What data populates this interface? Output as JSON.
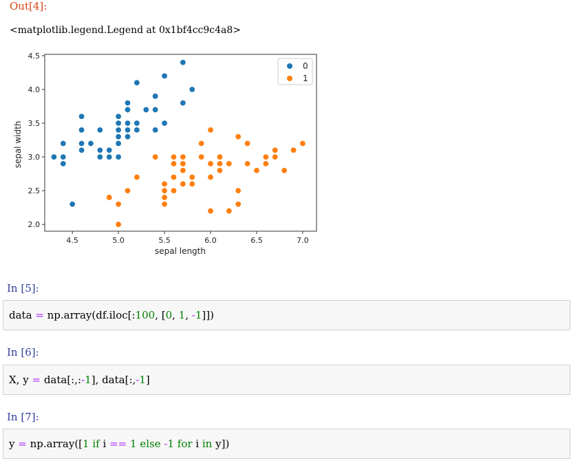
{
  "out4": {
    "prompt": "Out[4]:",
    "text": "<matplotlib.legend.Legend at 0x1bf4cc9c4a8>"
  },
  "chart_data": {
    "type": "scatter",
    "xlabel": "sepal length",
    "ylabel": "sepal width",
    "xlim": [
      4.2,
      7.15
    ],
    "ylim": [
      1.9,
      4.52
    ],
    "xticks": [
      "4.5",
      "5.0",
      "5.5",
      "6.0",
      "6.5",
      "7.0"
    ],
    "yticks": [
      "2.0",
      "2.5",
      "3.0",
      "3.5",
      "4.0",
      "4.5"
    ],
    "legend": {
      "position": "top-right",
      "entries": [
        "0",
        "1"
      ]
    },
    "colors": {
      "0": "#1f77b4",
      "1": "#ff7f0e"
    },
    "grid": false,
    "series": [
      {
        "name": "0",
        "points": [
          [
            4.3,
            3.0
          ],
          [
            4.4,
            3.2
          ],
          [
            4.4,
            3.0
          ],
          [
            4.4,
            2.9
          ],
          [
            4.5,
            2.3
          ],
          [
            4.6,
            3.6
          ],
          [
            4.6,
            3.4
          ],
          [
            4.6,
            3.2
          ],
          [
            4.6,
            3.1
          ],
          [
            4.7,
            3.2
          ],
          [
            4.8,
            3.4
          ],
          [
            4.8,
            3.1
          ],
          [
            4.8,
            3.0
          ],
          [
            4.9,
            3.1
          ],
          [
            4.9,
            3.0
          ],
          [
            5.0,
            3.6
          ],
          [
            5.0,
            3.5
          ],
          [
            5.0,
            3.4
          ],
          [
            5.0,
            3.3
          ],
          [
            5.0,
            3.2
          ],
          [
            5.0,
            3.0
          ],
          [
            5.1,
            3.8
          ],
          [
            5.1,
            3.7
          ],
          [
            5.1,
            3.5
          ],
          [
            5.1,
            3.4
          ],
          [
            5.1,
            3.3
          ],
          [
            5.2,
            4.1
          ],
          [
            5.2,
            3.5
          ],
          [
            5.2,
            3.4
          ],
          [
            5.3,
            3.7
          ],
          [
            5.4,
            3.9
          ],
          [
            5.4,
            3.7
          ],
          [
            5.4,
            3.4
          ],
          [
            5.5,
            4.2
          ],
          [
            5.5,
            3.5
          ],
          [
            5.7,
            4.4
          ],
          [
            5.7,
            3.8
          ],
          [
            5.8,
            4.0
          ]
        ]
      },
      {
        "name": "1",
        "points": [
          [
            4.9,
            2.4
          ],
          [
            5.0,
            2.3
          ],
          [
            5.0,
            2.0
          ],
          [
            5.1,
            2.5
          ],
          [
            5.2,
            2.7
          ],
          [
            5.4,
            3.0
          ],
          [
            5.5,
            2.6
          ],
          [
            5.5,
            2.5
          ],
          [
            5.5,
            2.4
          ],
          [
            5.5,
            2.3
          ],
          [
            5.6,
            3.0
          ],
          [
            5.6,
            2.9
          ],
          [
            5.6,
            2.7
          ],
          [
            5.6,
            2.5
          ],
          [
            5.7,
            3.0
          ],
          [
            5.7,
            2.9
          ],
          [
            5.7,
            2.8
          ],
          [
            5.7,
            2.6
          ],
          [
            5.8,
            2.7
          ],
          [
            5.8,
            2.6
          ],
          [
            5.9,
            3.2
          ],
          [
            5.9,
            3.0
          ],
          [
            6.0,
            3.4
          ],
          [
            6.0,
            2.9
          ],
          [
            6.0,
            2.7
          ],
          [
            6.0,
            2.2
          ],
          [
            6.1,
            3.0
          ],
          [
            6.1,
            2.9
          ],
          [
            6.1,
            2.8
          ],
          [
            6.2,
            2.9
          ],
          [
            6.2,
            2.2
          ],
          [
            6.3,
            3.3
          ],
          [
            6.3,
            2.5
          ],
          [
            6.3,
            2.3
          ],
          [
            6.4,
            3.2
          ],
          [
            6.4,
            2.9
          ],
          [
            6.5,
            2.8
          ],
          [
            6.6,
            3.0
          ],
          [
            6.6,
            2.9
          ],
          [
            6.7,
            3.1
          ],
          [
            6.7,
            3.0
          ],
          [
            6.8,
            2.8
          ],
          [
            6.9,
            3.1
          ],
          [
            7.0,
            3.2
          ]
        ]
      }
    ]
  },
  "cells": [
    {
      "prompt": "In [5]:",
      "code": "data = np.array(df.iloc[:100, [0, 1, -1]])"
    },
    {
      "prompt": "In [6]:",
      "code": "X, y = data[:,:-1], data[:,-1]"
    },
    {
      "prompt": "In [7]:",
      "code": "y = np.array([1 if i == 1 else -1 for i in y])"
    }
  ]
}
